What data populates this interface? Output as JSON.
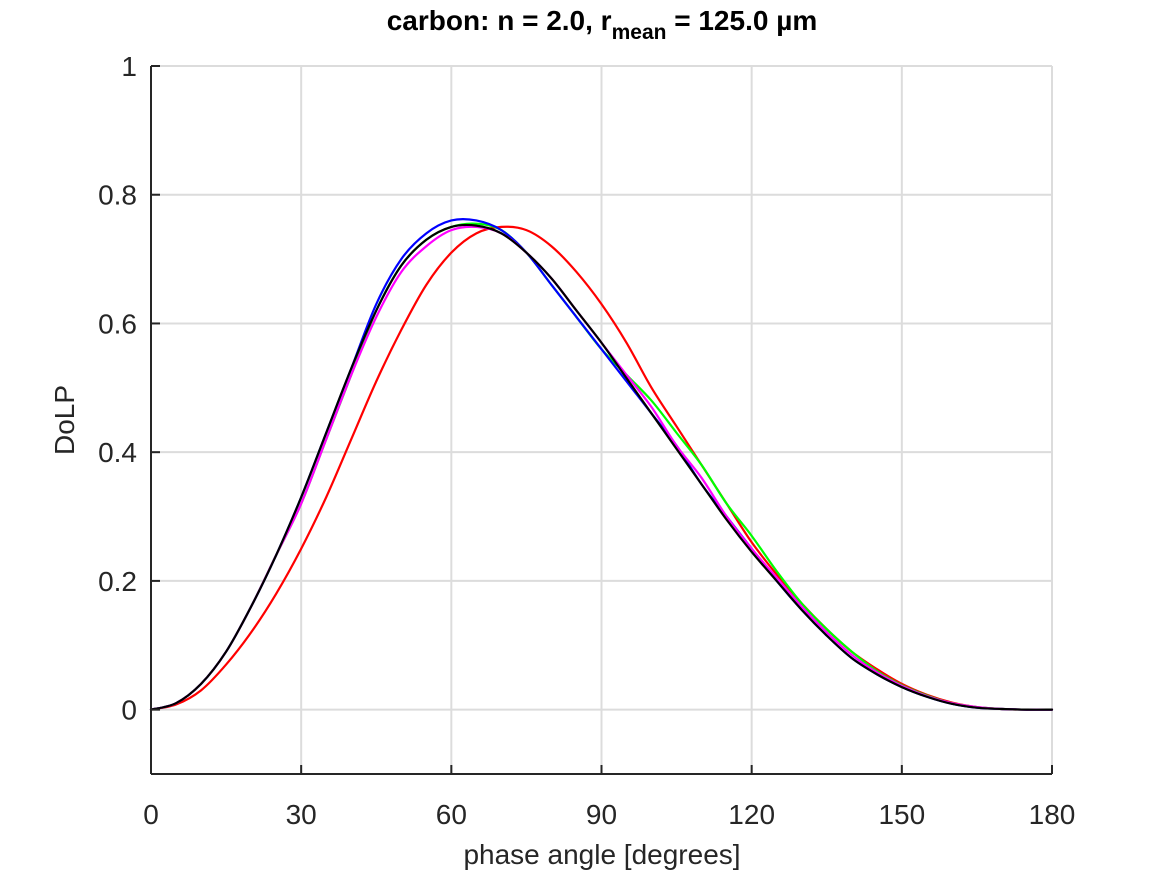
{
  "chart_data": {
    "type": "line",
    "title": {
      "prefix": "carbon: n = 2.0, r",
      "subscript": "mean",
      "suffix": " = 125.0 µm"
    },
    "xlabel": "phase angle [degrees]",
    "ylabel": "DoLP",
    "xlim": [
      0,
      180
    ],
    "ylim": [
      -0.1,
      1
    ],
    "xticks": [
      0,
      30,
      60,
      90,
      120,
      150,
      180
    ],
    "xtick_labels": [
      "0",
      "30",
      "60",
      "90",
      "120",
      "150",
      "180"
    ],
    "yticks": [
      0,
      0.2,
      0.4,
      0.6,
      0.8,
      1
    ],
    "ytick_labels": [
      "0",
      "0.2",
      "0.4",
      "0.6",
      "0.8",
      "1"
    ],
    "grid": true,
    "series": [
      {
        "name": "red",
        "color": "#ff0000",
        "x": [
          0,
          5,
          10,
          15,
          20,
          25,
          30,
          35,
          40,
          45,
          50,
          55,
          60,
          65,
          70,
          75,
          80,
          85,
          90,
          95,
          100,
          105,
          110,
          115,
          120,
          125,
          130,
          135,
          140,
          145,
          150,
          155,
          160,
          165,
          170,
          175,
          180
        ],
        "y": [
          0,
          0.008,
          0.03,
          0.07,
          0.12,
          0.18,
          0.25,
          0.33,
          0.42,
          0.51,
          0.59,
          0.66,
          0.71,
          0.74,
          0.75,
          0.745,
          0.72,
          0.68,
          0.63,
          0.57,
          0.5,
          0.44,
          0.38,
          0.32,
          0.26,
          0.21,
          0.165,
          0.125,
          0.09,
          0.063,
          0.04,
          0.023,
          0.011,
          0.004,
          0.001,
          0,
          0
        ]
      },
      {
        "name": "green",
        "color": "#00ff00",
        "x": [
          0,
          5,
          10,
          15,
          20,
          25,
          30,
          35,
          40,
          45,
          50,
          55,
          60,
          65,
          70,
          75,
          80,
          85,
          90,
          95,
          100,
          105,
          110,
          115,
          120,
          125,
          130,
          135,
          140,
          145,
          150,
          155,
          160,
          165,
          170,
          175,
          180
        ],
        "y": [
          0,
          0.01,
          0.04,
          0.09,
          0.16,
          0.24,
          0.32,
          0.42,
          0.52,
          0.62,
          0.69,
          0.73,
          0.75,
          0.755,
          0.745,
          0.71,
          0.66,
          0.61,
          0.56,
          0.52,
          0.48,
          0.43,
          0.38,
          0.32,
          0.27,
          0.215,
          0.165,
          0.125,
          0.09,
          0.06,
          0.038,
          0.022,
          0.01,
          0.004,
          0.001,
          0,
          0
        ]
      },
      {
        "name": "blue",
        "color": "#0000ff",
        "x": [
          0,
          5,
          10,
          15,
          20,
          25,
          30,
          35,
          40,
          45,
          50,
          55,
          60,
          65,
          70,
          75,
          80,
          85,
          90,
          95,
          100,
          105,
          110,
          115,
          120,
          125,
          130,
          135,
          140,
          145,
          150,
          155,
          160,
          165,
          170,
          175,
          180
        ],
        "y": [
          0,
          0.01,
          0.04,
          0.09,
          0.16,
          0.24,
          0.33,
          0.43,
          0.53,
          0.63,
          0.7,
          0.74,
          0.76,
          0.76,
          0.745,
          0.71,
          0.66,
          0.61,
          0.56,
          0.51,
          0.46,
          0.41,
          0.35,
          0.3,
          0.25,
          0.2,
          0.155,
          0.115,
          0.08,
          0.055,
          0.035,
          0.02,
          0.009,
          0.003,
          0.001,
          0,
          0
        ]
      },
      {
        "name": "magenta",
        "color": "#ff00ff",
        "x": [
          0,
          5,
          10,
          15,
          20,
          25,
          30,
          35,
          40,
          45,
          50,
          55,
          60,
          65,
          70,
          75,
          80,
          85,
          90,
          95,
          100,
          105,
          110,
          115,
          120,
          125,
          130,
          135,
          140,
          145,
          150,
          155,
          160,
          165,
          170,
          175,
          180
        ],
        "y": [
          0,
          0.01,
          0.04,
          0.09,
          0.16,
          0.24,
          0.32,
          0.42,
          0.52,
          0.61,
          0.68,
          0.72,
          0.745,
          0.75,
          0.74,
          0.71,
          0.67,
          0.62,
          0.57,
          0.52,
          0.47,
          0.41,
          0.36,
          0.3,
          0.25,
          0.205,
          0.16,
          0.12,
          0.085,
          0.058,
          0.037,
          0.021,
          0.01,
          0.004,
          0.001,
          0,
          0
        ]
      },
      {
        "name": "black",
        "color": "#000000",
        "x": [
          0,
          5,
          10,
          15,
          20,
          25,
          30,
          35,
          40,
          45,
          50,
          55,
          60,
          65,
          70,
          75,
          80,
          85,
          90,
          95,
          100,
          105,
          110,
          115,
          120,
          125,
          130,
          135,
          140,
          145,
          150,
          155,
          160,
          165,
          170,
          175,
          180
        ],
        "y": [
          0,
          0.01,
          0.04,
          0.09,
          0.16,
          0.24,
          0.33,
          0.43,
          0.53,
          0.62,
          0.69,
          0.73,
          0.75,
          0.752,
          0.74,
          0.71,
          0.67,
          0.62,
          0.57,
          0.515,
          0.46,
          0.405,
          0.35,
          0.295,
          0.245,
          0.2,
          0.155,
          0.115,
          0.08,
          0.055,
          0.035,
          0.02,
          0.009,
          0.003,
          0.001,
          0,
          0
        ]
      }
    ]
  }
}
